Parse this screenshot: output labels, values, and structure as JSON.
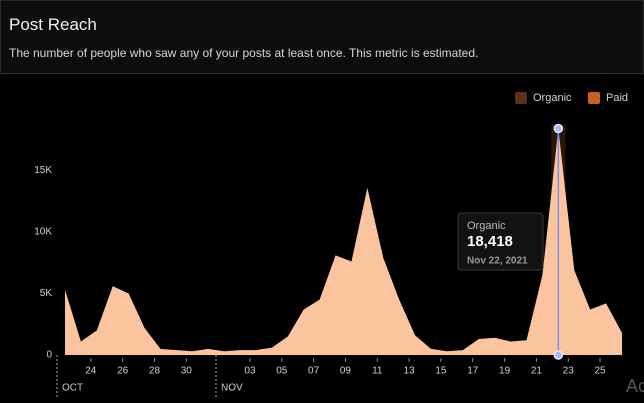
{
  "header": {
    "title": "Post Reach",
    "subtitle": "The number of people who saw any of your posts at least once. This metric is estimated."
  },
  "chart_data": {
    "type": "area",
    "categories": [
      null,
      null,
      "24",
      null,
      "26",
      null,
      "28",
      null,
      "30",
      null,
      null,
      null,
      "03",
      null,
      "05",
      null,
      "07",
      null,
      "09",
      null,
      "11",
      null,
      "13",
      null,
      "15",
      null,
      "17",
      null,
      "19",
      null,
      "21",
      null,
      "23",
      null,
      "25",
      null
    ],
    "month_labels": [
      "OCT",
      "NOV"
    ],
    "series": [
      {
        "name": "Organic",
        "color": "#f9c49e",
        "values": [
          5300,
          1100,
          2000,
          5600,
          5000,
          2200,
          500,
          400,
          300,
          500,
          300,
          400,
          400,
          600,
          1500,
          3700,
          4500,
          8100,
          7600,
          13600,
          7900,
          4500,
          1600,
          500,
          300,
          400,
          1300,
          1400,
          1100,
          1200,
          6500,
          18418,
          6900,
          3700,
          4200,
          1800
        ]
      }
    ],
    "legend": [
      {
        "name": "Organic",
        "color": "#5c3117"
      },
      {
        "name": "Paid",
        "color": "#c4611a"
      }
    ],
    "ylim": [
      0,
      20000
    ],
    "yticks": [
      0,
      {
        "value": 5000,
        "label": "5K"
      },
      {
        "value": 10000,
        "label": "10K"
      },
      {
        "value": 15000,
        "label": "15K"
      }
    ],
    "grid": false,
    "tooltip": {
      "series": "Organic",
      "value_label": "18,418",
      "date": "Nov 22, 2021"
    },
    "watermark": "Ac"
  }
}
